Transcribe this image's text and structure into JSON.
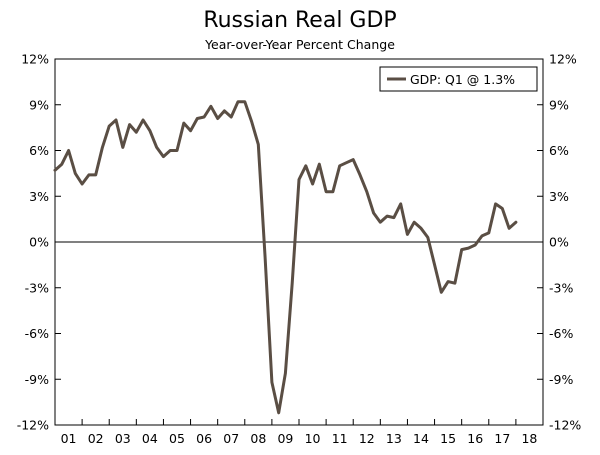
{
  "chart_data": {
    "type": "line",
    "title": "Russian Real GDP",
    "subtitle": "Year-over-Year Percent Change",
    "ylim": [
      -12,
      12
    ],
    "yticks": [
      12,
      9,
      6,
      3,
      0,
      -3,
      -6,
      -9,
      -12
    ],
    "ytick_labels": [
      "12%",
      "9%",
      "6%",
      "3%",
      "0%",
      "-3%",
      "-6%",
      "-9%",
      "-12%"
    ],
    "xlim": [
      2001.0,
      2019.0
    ],
    "xtick_labels": [
      "01",
      "02",
      "03",
      "04",
      "05",
      "06",
      "07",
      "08",
      "09",
      "10",
      "11",
      "12",
      "13",
      "14",
      "15",
      "16",
      "17",
      "18"
    ],
    "legend": "GDP: Q1 @ 1.3%",
    "line_color": "#5a4e44",
    "series": [
      {
        "name": "GDP",
        "x": [
          2001.0,
          2001.25,
          2001.5,
          2001.75,
          2002.0,
          2002.25,
          2002.5,
          2002.75,
          2003.0,
          2003.25,
          2003.5,
          2003.75,
          2004.0,
          2004.25,
          2004.5,
          2004.75,
          2005.0,
          2005.25,
          2005.5,
          2005.75,
          2006.0,
          2006.25,
          2006.5,
          2006.75,
          2007.0,
          2007.25,
          2007.5,
          2007.75,
          2008.0,
          2008.25,
          2008.5,
          2008.75,
          2009.0,
          2009.25,
          2009.5,
          2009.75,
          2010.0,
          2010.25,
          2010.5,
          2010.75,
          2011.0,
          2011.25,
          2011.5,
          2011.75,
          2012.0,
          2012.25,
          2012.5,
          2012.75,
          2013.0,
          2013.25,
          2013.5,
          2013.75,
          2014.0,
          2014.25,
          2014.5,
          2014.75,
          2015.0,
          2015.25,
          2015.5,
          2015.75,
          2016.0,
          2016.25,
          2016.5,
          2016.75,
          2017.0,
          2017.25,
          2017.5,
          2017.75,
          2018.0
        ],
        "values": [
          4.7,
          5.1,
          6.0,
          4.5,
          3.8,
          4.4,
          4.4,
          6.2,
          7.6,
          8.0,
          6.2,
          7.7,
          7.2,
          8.0,
          7.3,
          6.2,
          5.6,
          6.0,
          6.0,
          7.8,
          7.3,
          8.1,
          8.2,
          8.9,
          8.1,
          8.6,
          8.2,
          9.2,
          9.2,
          7.9,
          6.4,
          -1.0,
          -9.2,
          -11.2,
          -8.6,
          -2.7,
          4.1,
          5.0,
          3.8,
          5.1,
          3.3,
          3.3,
          5.0,
          5.2,
          5.4,
          4.4,
          3.3,
          1.9,
          1.3,
          1.7,
          1.6,
          2.5,
          0.5,
          1.3,
          0.9,
          0.3,
          -1.5,
          -3.3,
          -2.6,
          -2.7,
          -0.5,
          -0.4,
          -0.2,
          0.4,
          0.6,
          2.5,
          2.2,
          0.9,
          1.3
        ]
      }
    ]
  }
}
